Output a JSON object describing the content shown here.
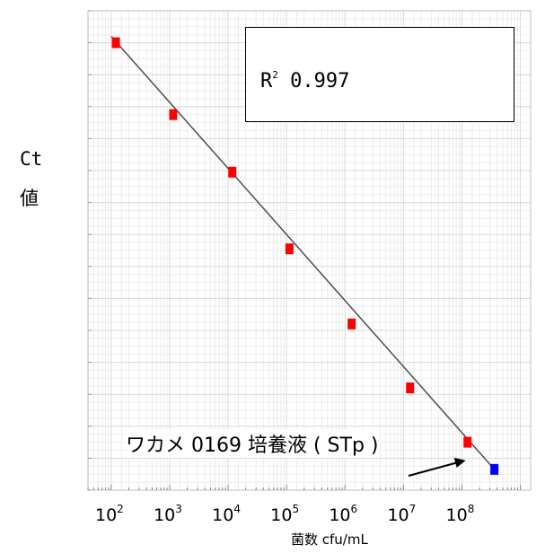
{
  "chart_data": {
    "type": "scatter",
    "xscale": "log",
    "x_ticks": [
      {
        "value": 100,
        "base": "10",
        "exp": "2"
      },
      {
        "value": 1000,
        "base": "10",
        "exp": "3"
      },
      {
        "value": 10000,
        "base": "10",
        "exp": "4"
      },
      {
        "value": 100000,
        "base": "10",
        "exp": "5"
      },
      {
        "value": 1000000,
        "base": "10",
        "exp": "6"
      },
      {
        "value": 10000000,
        "base": "10",
        "exp": "7"
      },
      {
        "value": 100000000,
        "base": "10",
        "exp": "8"
      }
    ],
    "xlabel": "菌数 cfu/mL",
    "ylabel": [
      "Ct",
      "値"
    ],
    "y_tick_labels_shown": false,
    "grid": true,
    "series": [
      {
        "color": "#ff0000",
        "points": [
          {
            "x": 120,
            "y": 36.0
          },
          {
            "x": 1150,
            "y": 31.5
          },
          {
            "x": 11800,
            "y": 27.9
          },
          {
            "x": 112000,
            "y": 23.1
          },
          {
            "x": 1300000,
            "y": 18.4
          },
          {
            "x": 13000000,
            "y": 14.4
          },
          {
            "x": 125000000,
            "y": 11.0
          }
        ]
      },
      {
        "color": "#0000ff",
        "points": [
          {
            "x": 360000000,
            "y": 9.3
          }
        ]
      }
    ],
    "fit_line": {
      "color": "#4d4d4d",
      "from": {
        "x": 100,
        "y": 36.4
      },
      "to": {
        "x": 360000000,
        "y": 9.3
      }
    },
    "r_squared": {
      "label": "R",
      "superscript": "2",
      "value": "0.997"
    },
    "annotation": {
      "text": "ワカメ 0169 培養液 ( STp )",
      "arrow": true
    },
    "xlim": [
      40,
      1500000000
    ],
    "ylim": [
      8,
      38
    ]
  }
}
